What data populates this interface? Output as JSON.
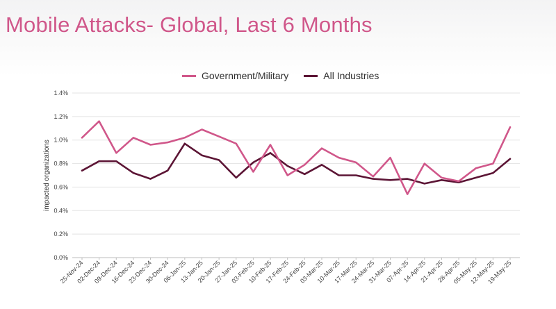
{
  "title": "Mobile Attacks- Global, Last 6 Months",
  "colors": {
    "government": "#d0578a",
    "industries": "#5c1535",
    "grid": "#e3e3e3",
    "axis": "#bdbdbd"
  },
  "chart_data": {
    "type": "line",
    "ylabel": "impacted organizations",
    "xlabel": "",
    "ylim": [
      0,
      1.4
    ],
    "yticks": [
      "0.0%",
      "0.2%",
      "0.4%",
      "0.6%",
      "0.8%",
      "1.0%",
      "1.2%",
      "1.4%"
    ],
    "grid": true,
    "legend_position": "top",
    "categories": [
      "25-Nov-24",
      "02-Dec-24",
      "09-Dec-24",
      "16-Dec-24",
      "23-Dec-24",
      "30-Dec-24",
      "06-Jan-25",
      "13-Jan-25",
      "20-Jan-25",
      "27-Jan-25",
      "03-Feb-25",
      "10-Feb-25",
      "17-Feb-25",
      "24-Feb-25",
      "03-Mar-25",
      "10-Mar-25",
      "17-Mar-25",
      "24-Mar-25",
      "31-Mar-25",
      "07-Apr-25",
      "14-Apr-25",
      "21-Apr-25",
      "28-Apr-25",
      "05-May-25",
      "12-May-25",
      "19-May-25"
    ],
    "series": [
      {
        "name": "Government/Military",
        "color": "#d0578a",
        "values": [
          1.02,
          1.16,
          0.89,
          1.02,
          0.96,
          0.98,
          1.02,
          1.09,
          1.03,
          0.97,
          0.73,
          0.96,
          0.7,
          0.79,
          0.93,
          0.85,
          0.81,
          0.69,
          0.85,
          0.54,
          0.8,
          0.68,
          0.65,
          0.76,
          0.8,
          1.11
        ]
      },
      {
        "name": "All Industries",
        "color": "#5c1535",
        "values": [
          0.74,
          0.82,
          0.82,
          0.72,
          0.67,
          0.74,
          0.97,
          0.87,
          0.83,
          0.68,
          0.81,
          0.89,
          0.78,
          0.71,
          0.79,
          0.7,
          0.7,
          0.67,
          0.66,
          0.67,
          0.63,
          0.66,
          0.64,
          0.68,
          0.72,
          0.84
        ]
      }
    ]
  }
}
